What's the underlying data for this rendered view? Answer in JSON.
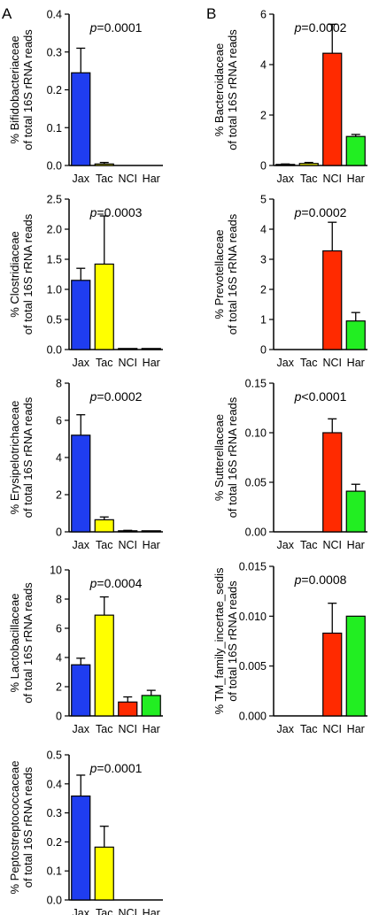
{
  "panel_labels": [
    "A",
    "B"
  ],
  "categories": [
    "Jax",
    "Tac",
    "NCI",
    "Har"
  ],
  "colors": [
    "#1f3df0",
    "#ffff00",
    "#ff2a00",
    "#22ee22"
  ],
  "y_label_line2": "of total 16S rRNA reads",
  "chart_data": [
    {
      "type": "bar",
      "panel": "A",
      "title": "",
      "xlabel": "",
      "ylabel": "% Bifidobacteriaceae",
      "p_italic": "p",
      "p_rest": "=0.0001",
      "ylim": [
        0,
        0.4
      ],
      "ticks": [
        "0.0",
        "0.1",
        "0.2",
        "0.3",
        "0.4"
      ],
      "values": [
        0.245,
        0.004,
        0,
        0
      ],
      "errors": [
        0.065,
        0.004,
        0,
        0
      ]
    },
    {
      "type": "bar",
      "panel": "A",
      "title": "",
      "xlabel": "",
      "ylabel": "% Clostridiaceae",
      "p_italic": "p",
      "p_rest": "=0.0003",
      "ylim": [
        0,
        2.5
      ],
      "ticks": [
        "0.0",
        "0.5",
        "1.0",
        "1.5",
        "2.0",
        "2.5"
      ],
      "values": [
        1.15,
        1.42,
        0.015,
        0.005
      ],
      "errors": [
        0.2,
        0.8,
        0,
        0
      ]
    },
    {
      "type": "bar",
      "panel": "A",
      "title": "",
      "xlabel": "",
      "ylabel": "% Erysipelotrichaceae",
      "p_italic": "p",
      "p_rest": "=0.0002",
      "ylim": [
        0,
        8
      ],
      "ticks": [
        "0",
        "2",
        "4",
        "6",
        "8"
      ],
      "values": [
        5.2,
        0.65,
        0.05,
        0.02
      ],
      "errors": [
        1.1,
        0.15,
        0.03,
        0
      ]
    },
    {
      "type": "bar",
      "panel": "A",
      "title": "",
      "xlabel": "",
      "ylabel": "% Lactobacillaceae",
      "p_italic": "p",
      "p_rest": "=0.0004",
      "ylim": [
        0,
        10
      ],
      "ticks": [
        "0",
        "2",
        "4",
        "6",
        "8",
        "10"
      ],
      "values": [
        3.5,
        6.9,
        0.95,
        1.4
      ],
      "errors": [
        0.45,
        1.25,
        0.35,
        0.35
      ]
    },
    {
      "type": "bar",
      "panel": "A",
      "title": "",
      "xlabel": "",
      "ylabel": "% Peptostreptococcaceae",
      "p_italic": "p",
      "p_rest": "=0.0001",
      "ylim": [
        0,
        0.5
      ],
      "ticks": [
        "0.0",
        "0.1",
        "0.2",
        "0.3",
        "0.4",
        "0.5"
      ],
      "values": [
        0.358,
        0.182,
        0,
        0
      ],
      "errors": [
        0.072,
        0.072,
        0,
        0
      ]
    },
    {
      "type": "bar",
      "panel": "B",
      "title": "",
      "xlabel": "",
      "ylabel": "% Bacteroidaceae",
      "p_italic": "p",
      "p_rest": "=0.0002",
      "ylim": [
        0,
        6
      ],
      "ticks": [
        "0",
        "2",
        "4",
        "6"
      ],
      "values": [
        0.04,
        0.08,
        4.45,
        1.15
      ],
      "errors": [
        0.02,
        0.04,
        1.15,
        0.08
      ]
    },
    {
      "type": "bar",
      "panel": "B",
      "title": "",
      "xlabel": "",
      "ylabel": "% Prevotellaceae",
      "p_italic": "p",
      "p_rest": "=0.0002",
      "ylim": [
        0,
        5
      ],
      "ticks": [
        "0",
        "1",
        "2",
        "3",
        "4",
        "5"
      ],
      "values": [
        0,
        0,
        3.28,
        0.95
      ],
      "errors": [
        0,
        0,
        0.95,
        0.28
      ]
    },
    {
      "type": "bar",
      "panel": "B",
      "title": "",
      "xlabel": "",
      "ylabel": "% Sutterellaceae",
      "p_italic": "p",
      "p_rest": "<0.0001",
      "ylim": [
        0,
        0.15
      ],
      "ticks": [
        "0.00",
        "0.05",
        "0.10",
        "0.15"
      ],
      "values": [
        0,
        0,
        0.1,
        0.041
      ],
      "errors": [
        0,
        0,
        0.014,
        0.007
      ]
    },
    {
      "type": "bar",
      "panel": "B",
      "title": "",
      "xlabel": "",
      "ylabel": "% TM_family_incertae_sedis",
      "p_italic": "p",
      "p_rest": "=0.0008",
      "ylim": [
        0,
        0.015
      ],
      "ticks": [
        "0.000",
        "0.005",
        "0.010",
        "0.015"
      ],
      "values": [
        0,
        0,
        0.0083,
        0.01
      ],
      "errors": [
        0,
        0,
        0.003,
        0
      ]
    }
  ]
}
